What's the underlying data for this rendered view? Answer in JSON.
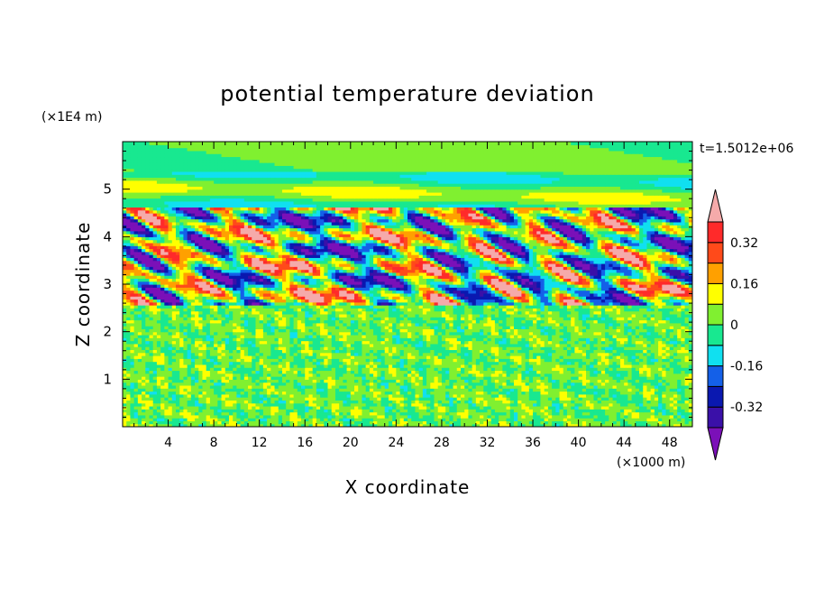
{
  "chart_data": {
    "type": "heatmap",
    "title": "potential temperature deviation",
    "xlabel": "X coordinate",
    "ylabel": "Z coordinate",
    "x_unit": "(×1000 m)",
    "y_unit": "(×1E4 m)",
    "time_label": "t=1.5012e+06",
    "x_range": [
      0,
      50
    ],
    "y_range": [
      0,
      6
    ],
    "x_ticks": [
      "4",
      "8",
      "12",
      "16",
      "20",
      "24",
      "28",
      "32",
      "36",
      "40",
      "44",
      "48"
    ],
    "x_tick_values": [
      4,
      8,
      12,
      16,
      20,
      24,
      28,
      32,
      36,
      40,
      44,
      48
    ],
    "y_ticks": [
      "1",
      "2",
      "3",
      "4",
      "5"
    ],
    "y_tick_values": [
      1,
      2,
      3,
      4,
      5
    ],
    "colorbar": {
      "labels": [
        "0.32",
        "0.16",
        "0",
        "-0.16",
        "-0.32"
      ],
      "label_values": [
        0.32,
        0.16,
        0,
        -0.16,
        -0.32
      ],
      "levels": [
        -0.4,
        -0.32,
        -0.24,
        -0.16,
        -0.08,
        0,
        0.08,
        0.16,
        0.24,
        0.32,
        0.4
      ],
      "colors": [
        "#7b10b8",
        "#3a10a8",
        "#0a18b0",
        "#1460e8",
        "#10e0f0",
        "#18e890",
        "#80f030",
        "#ffff00",
        "#ffa000",
        "#ff4a1a",
        "#ff2a2a",
        "#f5aaaa"
      ]
    }
  }
}
